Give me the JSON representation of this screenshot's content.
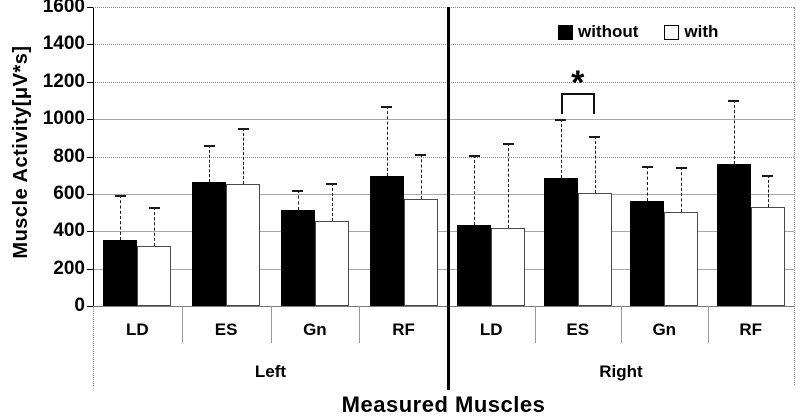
{
  "chart_data": {
    "type": "bar",
    "title": "",
    "ylabel": "Muscle Activity[μV*s]",
    "xlabel": "Measured Muscles",
    "ylim": [
      0,
      1600
    ],
    "yticks": [
      0,
      200,
      400,
      600,
      800,
      1000,
      1200,
      1400,
      1600
    ],
    "grid": "horizontal",
    "legend_position": "top-right-inside",
    "legend": [
      {
        "label": "without",
        "fill": "#000000"
      },
      {
        "label": "with",
        "fill": "#ffffff"
      }
    ],
    "panels": [
      {
        "label": "Left",
        "categories": [
          "LD",
          "ES",
          "Gn",
          "RF"
        ],
        "series": [
          {
            "name": "without",
            "values": [
              355,
              665,
              515,
              695
            ],
            "errors_up": [
              240,
              195,
              105,
              375
            ]
          },
          {
            "name": "with",
            "values": [
              320,
              655,
              455,
              575
            ],
            "errors_up": [
              210,
              300,
              205,
              240
            ]
          }
        ]
      },
      {
        "label": "Right",
        "categories": [
          "LD",
          "ES",
          "Gn",
          "RF"
        ],
        "series": [
          {
            "name": "without",
            "values": [
              435,
              685,
              560,
              760
            ],
            "errors_up": [
              375,
              315,
              190,
              340
            ]
          },
          {
            "name": "with",
            "values": [
              415,
              605,
              505,
              530
            ],
            "errors_up": [
              455,
              305,
              240,
              170
            ]
          }
        ]
      }
    ],
    "annotation": {
      "symbol": "*",
      "meaning": "significance-marker",
      "panel": "Right",
      "category": "ES",
      "between": [
        "without",
        "with"
      ]
    },
    "colors": {
      "bar_without": "#000000",
      "bar_with": "#ffffff",
      "gridline": "#a8a8a8",
      "text": "#000000"
    }
  }
}
